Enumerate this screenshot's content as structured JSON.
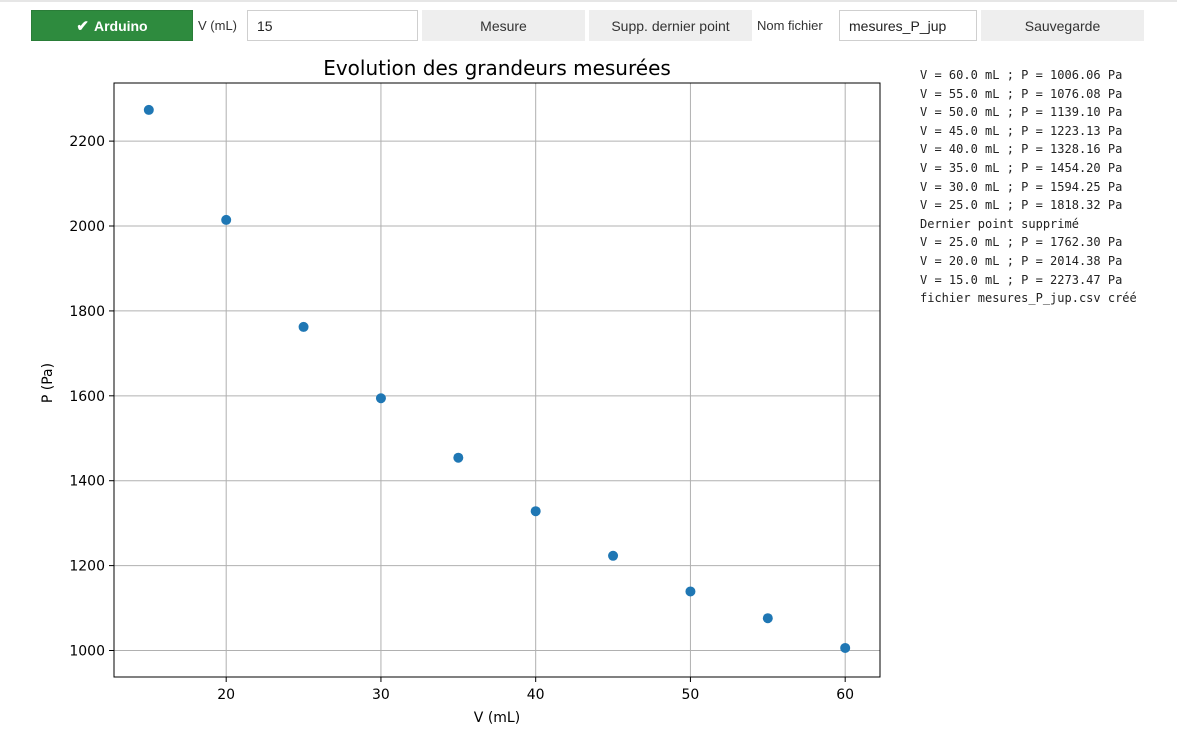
{
  "toolbar": {
    "arduino_label": "Arduino",
    "volume_label": "V (mL)",
    "volume_value": "15",
    "measure_label": "Mesure",
    "delete_label": "Supp. dernier point",
    "filename_label": "Nom fichier",
    "filename_value": "mesures_P_jup",
    "save_label": "Sauvegarde"
  },
  "colors": {
    "success": "#2e8b3e",
    "point": "#1f77b4",
    "grid": "#b0b0b0"
  },
  "log": [
    "V = 60.0 mL ; P = 1006.06 Pa",
    "V = 55.0 mL ; P = 1076.08 Pa",
    "V = 50.0 mL ; P = 1139.10 Pa",
    "V = 45.0 mL ; P = 1223.13 Pa",
    "V = 40.0 mL ; P = 1328.16 Pa",
    "V = 35.0 mL ; P = 1454.20 Pa",
    "V = 30.0 mL ; P = 1594.25 Pa",
    "V = 25.0 mL ; P = 1818.32 Pa",
    "Dernier point supprimé",
    "V = 25.0 mL ; P = 1762.30 Pa",
    "V = 20.0 mL ; P = 2014.38 Pa",
    "V = 15.0 mL ; P = 2273.47 Pa",
    "fichier mesures_P_jup.csv créé"
  ],
  "chart_data": {
    "type": "scatter",
    "title": "Evolution des grandeurs mesurées",
    "xlabel": "V (mL)",
    "ylabel": "P (Pa)",
    "xlim": [
      12.75,
      62.25
    ],
    "ylim": [
      937.6,
      2336.9
    ],
    "xticks": [
      20,
      30,
      40,
      50,
      60
    ],
    "yticks": [
      1000,
      1200,
      1400,
      1600,
      1800,
      2000,
      2200
    ],
    "grid": true,
    "x": [
      15,
      20,
      25,
      30,
      35,
      40,
      45,
      50,
      55,
      60
    ],
    "y": [
      2273.47,
      2014.38,
      1762.3,
      1594.25,
      1454.2,
      1328.16,
      1223.13,
      1139.1,
      1076.08,
      1006.06
    ]
  }
}
